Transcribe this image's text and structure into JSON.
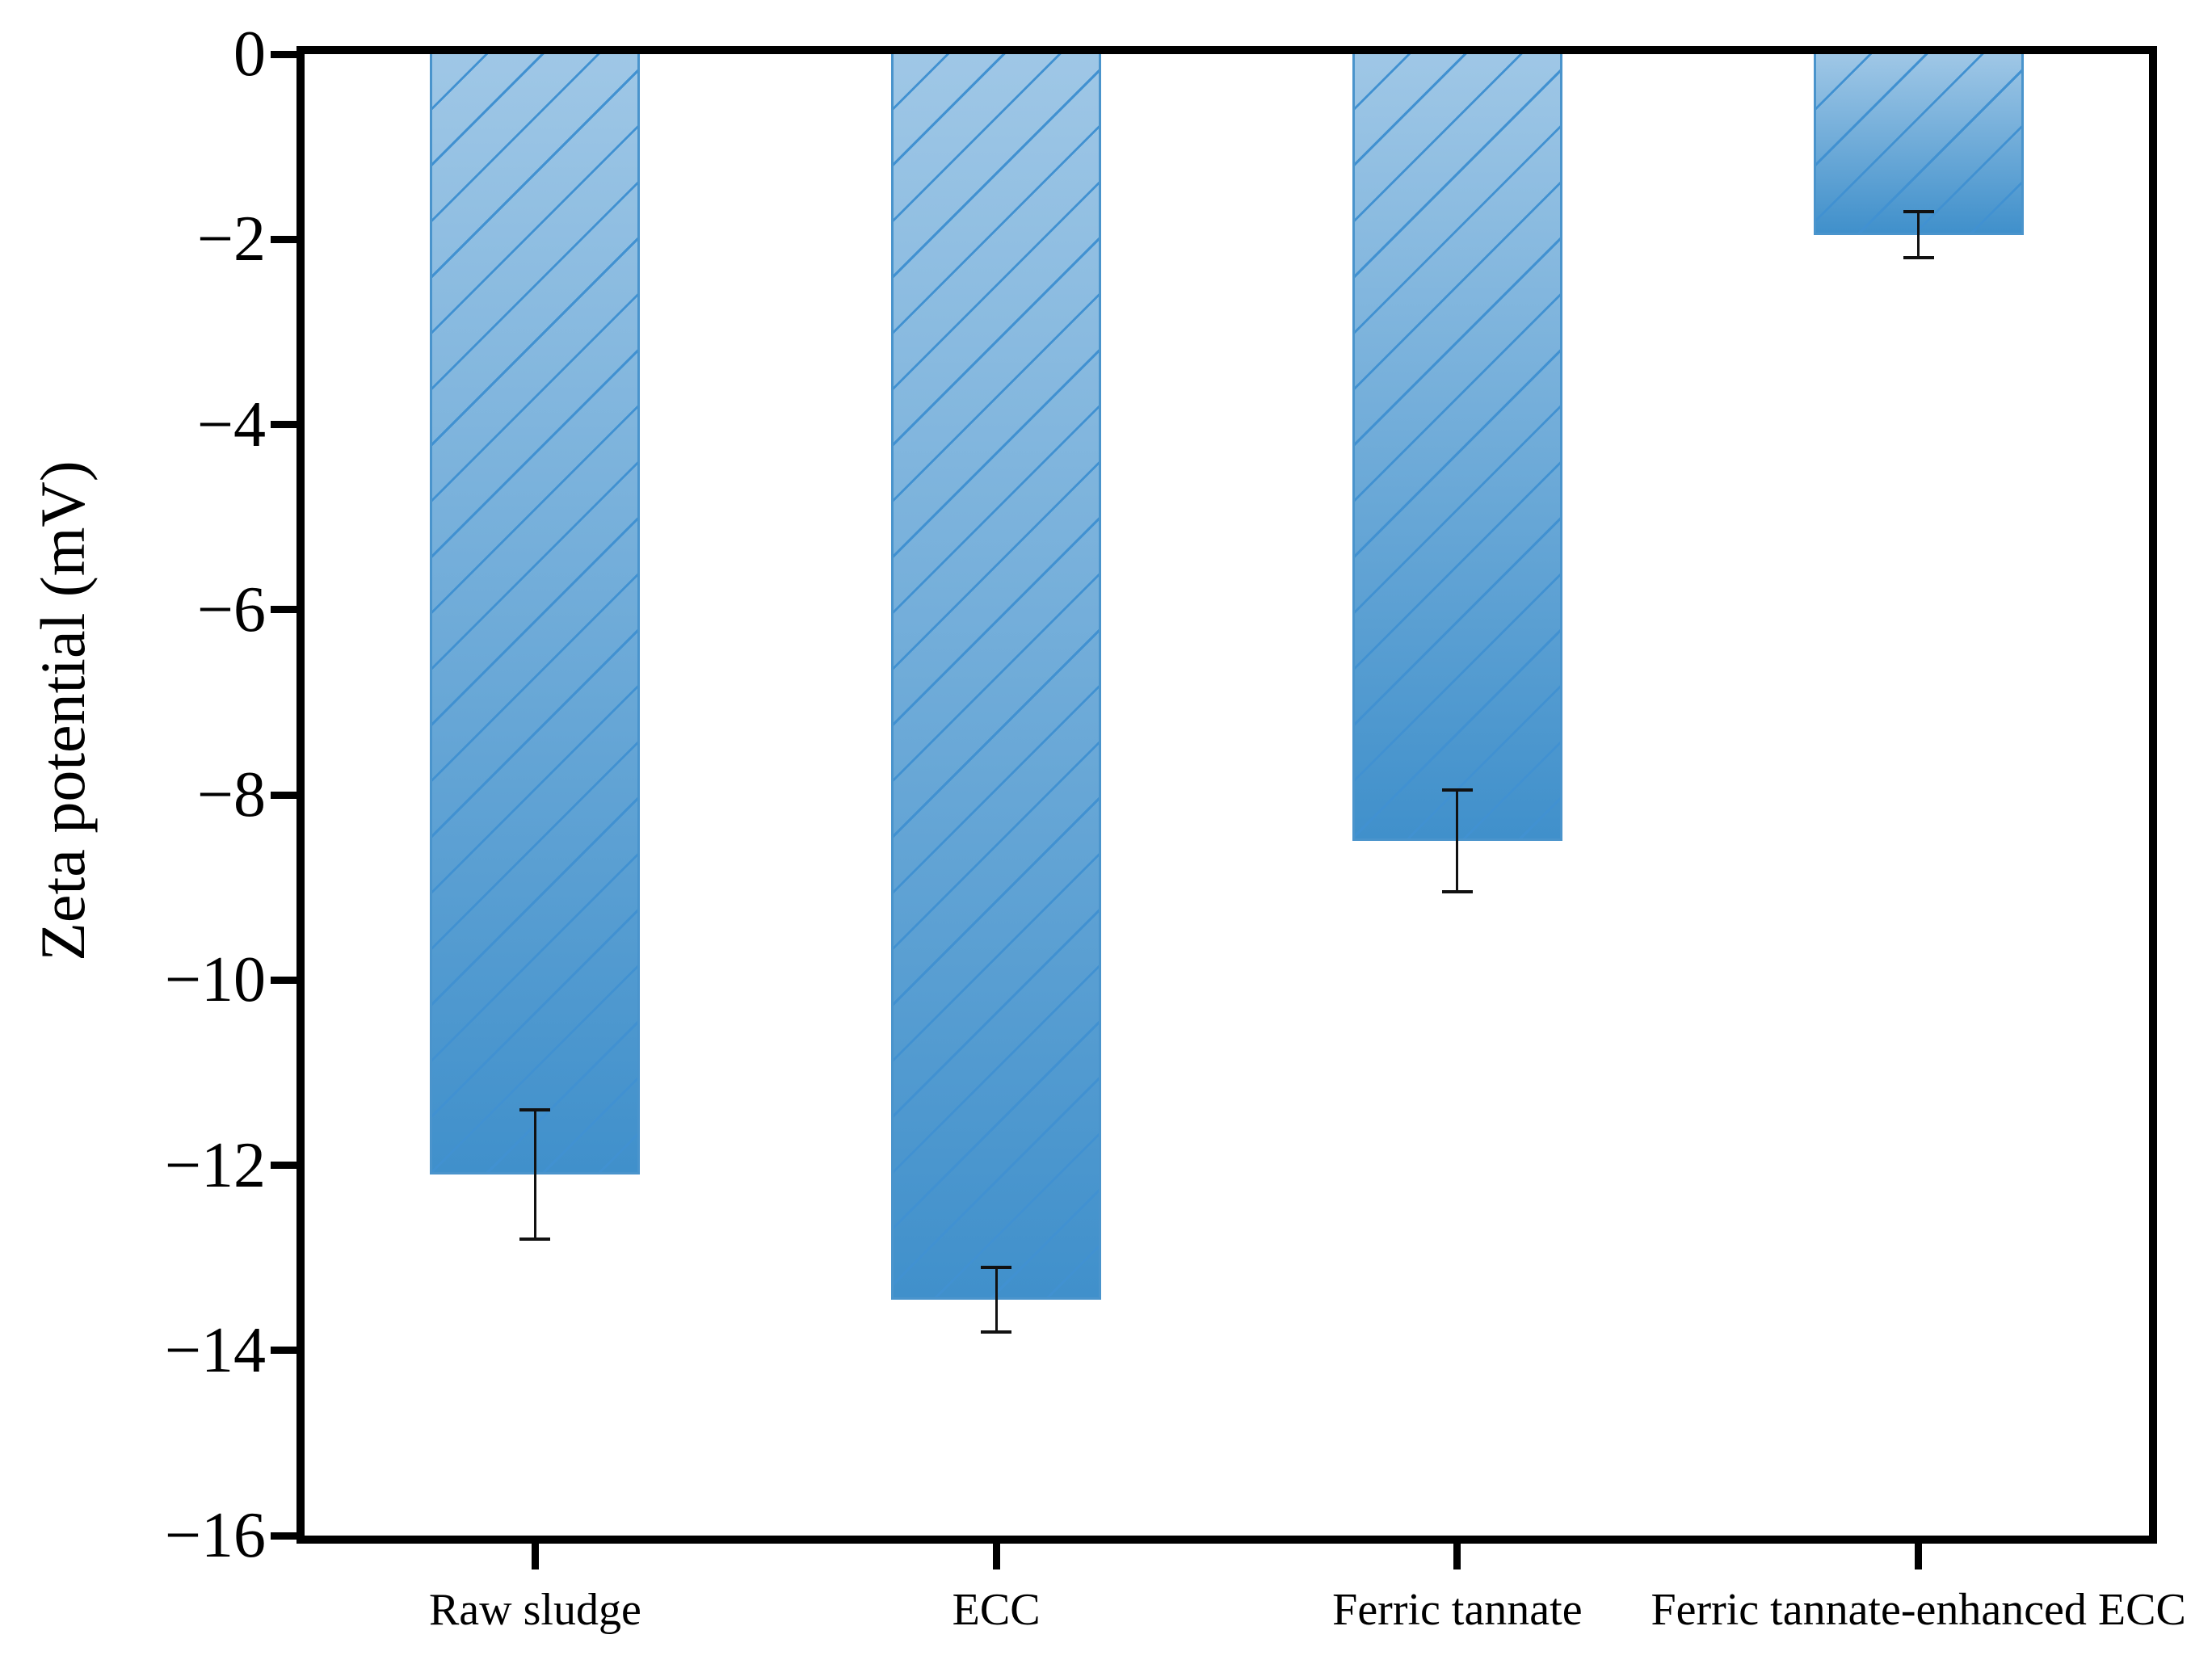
{
  "figure": {
    "background_color": "#ffffff",
    "frame_color": "#000000"
  },
  "chart_data": {
    "type": "bar",
    "title": "",
    "xlabel": "",
    "ylabel": "Zeta potential (mV)",
    "categories": [
      "Raw sludge",
      "ECC",
      "Ferric tannate",
      "Ferric tannate-enhanced ECC"
    ],
    "values": [
      -12.1,
      -13.45,
      -8.5,
      -1.95
    ],
    "errors": [
      0.7,
      0.35,
      0.55,
      0.25
    ],
    "ylim": [
      -16,
      0
    ],
    "yticks": [
      0,
      -2,
      -4,
      -6,
      -8,
      -10,
      -12,
      -14,
      -16
    ],
    "ytick_labels": [
      "0",
      "−2",
      "−4",
      "−6",
      "−8",
      "−10",
      "−12",
      "−14",
      "−16"
    ],
    "grid": false,
    "legend": "none",
    "bar_hatch": "diagonal-forward-slash",
    "bar_color_top": "#9fc7e6",
    "bar_color_bottom": "#4090cb",
    "bar_border_color": "#4a94cc",
    "hatch_color": "#4191d1",
    "error_bar_color": "#111111"
  }
}
